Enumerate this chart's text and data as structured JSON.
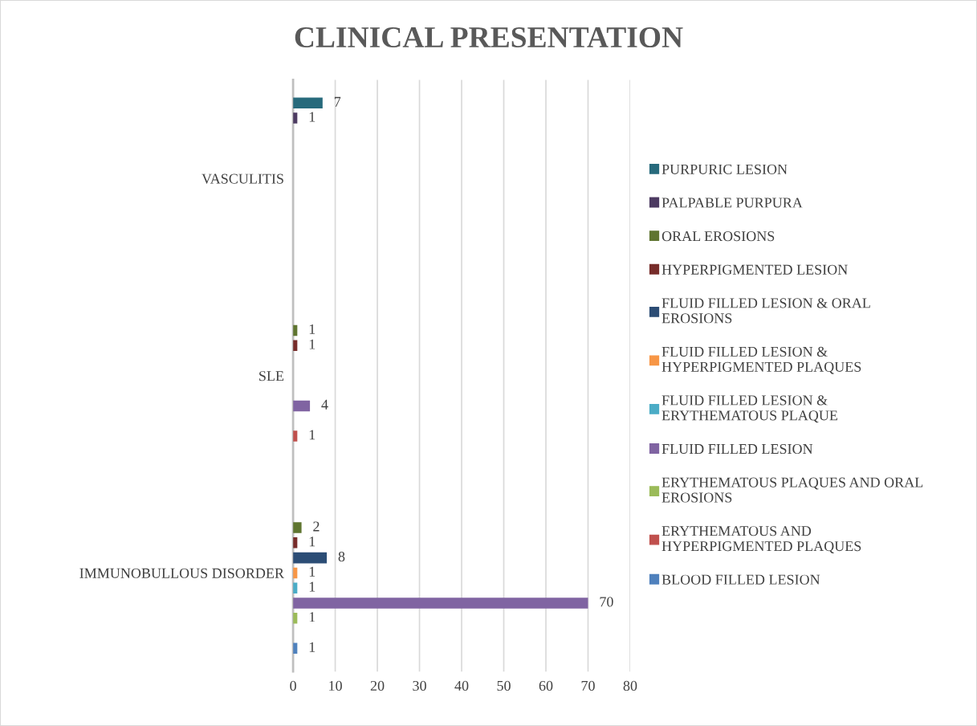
{
  "chart_data": {
    "type": "bar",
    "orientation": "horizontal",
    "title": "CLINICAL PRESENTATION",
    "categories": [
      "VASCULITIS",
      "SLE",
      "IMMUNOBULLOUS DISORDER"
    ],
    "series": [
      {
        "name": "BLOOD FILLED LESION",
        "color": "#4f81bd",
        "values": [
          null,
          null,
          1
        ]
      },
      {
        "name": "ERYTHEMATOUS AND HYPERPIGMENTED PLAQUES",
        "color": "#c0504d",
        "values": [
          null,
          1,
          null
        ]
      },
      {
        "name": "ERYTHEMATOUS PLAQUES AND ORAL EROSIONS",
        "color": "#9bbb59",
        "values": [
          null,
          null,
          1
        ]
      },
      {
        "name": "FLUID FILLED LESION",
        "color": "#8064a2",
        "values": [
          null,
          4,
          70
        ]
      },
      {
        "name": "FLUID FILLED LESION & ERYTHEMATOUS PLAQUE",
        "color": "#4bacc6",
        "values": [
          null,
          null,
          1
        ]
      },
      {
        "name": "FLUID FILLED LESION & HYPERPIGMENTED PLAQUES",
        "color": "#f79646",
        "values": [
          null,
          null,
          1
        ]
      },
      {
        "name": "FLUID FILLED LESION & ORAL EROSIONS",
        "color": "#2c4d75",
        "values": [
          null,
          null,
          8
        ]
      },
      {
        "name": "HYPERPIGMENTED LESION",
        "color": "#772c2a",
        "values": [
          null,
          1,
          1
        ]
      },
      {
        "name": "ORAL EROSIONS",
        "color": "#5f7530",
        "values": [
          null,
          1,
          2
        ]
      },
      {
        "name": "PALPABLE PURPURA",
        "color": "#4d3b62",
        "values": [
          1,
          null,
          null
        ]
      },
      {
        "name": "PURPURIC LESION",
        "color": "#276a7c",
        "values": [
          7,
          null,
          null
        ]
      }
    ],
    "xlim": [
      0,
      80
    ],
    "xticks": [
      0,
      10,
      20,
      30,
      40,
      50,
      60,
      70,
      80
    ],
    "grid": "x",
    "legend": "right",
    "data_labels": true
  }
}
